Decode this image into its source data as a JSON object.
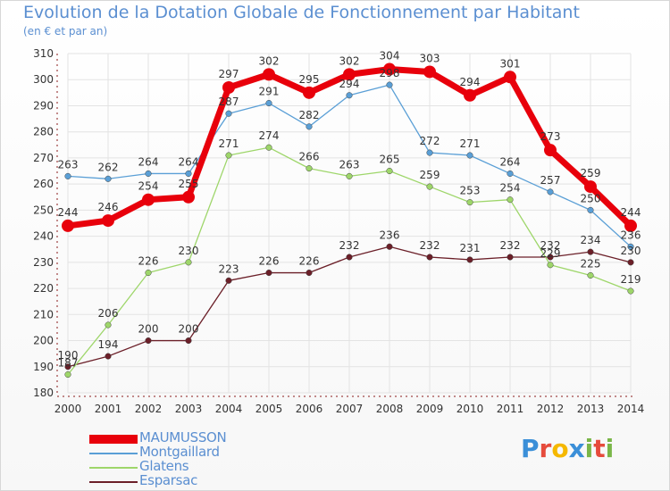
{
  "header": {
    "title": "Evolution de la Dotation Globale de Fonctionnement par Habitant",
    "subtitle": "(en € et par an)"
  },
  "logo": {
    "text": "Proxiti",
    "letters": [
      {
        "ch": "P",
        "color": "#3b8fd8"
      },
      {
        "ch": "r",
        "color": "#e64b3c"
      },
      {
        "ch": "o",
        "color": "#f5b800"
      },
      {
        "ch": "x",
        "color": "#3b8fd8"
      },
      {
        "ch": "i",
        "color": "#7ab648"
      },
      {
        "ch": "t",
        "color": "#e64b3c"
      },
      {
        "ch": "i",
        "color": "#7ab648"
      }
    ]
  },
  "chart_data": {
    "type": "line",
    "title": "Evolution de la Dotation Globale de Fonctionnement par Habitant",
    "subtitle": "(en € et par an)",
    "xlabel": "",
    "ylabel": "",
    "ylim": [
      180,
      310
    ],
    "yticks": [
      180,
      190,
      200,
      210,
      220,
      230,
      240,
      250,
      260,
      270,
      280,
      290,
      300,
      310
    ],
    "grid": true,
    "legend_position": "bottom-left",
    "categories": [
      "2000",
      "2001",
      "2002",
      "2003",
      "2004",
      "2005",
      "2006",
      "2007",
      "2008",
      "2009",
      "2010",
      "2011",
      "2012",
      "2013",
      "2014"
    ],
    "series": [
      {
        "name": "MAUMUSSON",
        "color": "#e8000b",
        "values": [
          244,
          246,
          254,
          255,
          297,
          302,
          295,
          302,
          304,
          303,
          294,
          301,
          273,
          259,
          244
        ]
      },
      {
        "name": "Montgaillard",
        "color": "#5a9fd6",
        "values": [
          263,
          262,
          264,
          264,
          287,
          291,
          282,
          294,
          298,
          272,
          271,
          264,
          257,
          250,
          236
        ]
      },
      {
        "name": "Glatens",
        "color": "#9ed66a",
        "values": [
          187,
          206,
          226,
          230,
          271,
          274,
          266,
          263,
          265,
          259,
          253,
          254,
          229,
          225,
          219
        ]
      },
      {
        "name": "Esparsac",
        "color": "#6b1f28",
        "values": [
          190,
          194,
          200,
          200,
          223,
          226,
          226,
          232,
          236,
          232,
          231,
          232,
          232,
          234,
          230
        ]
      }
    ]
  }
}
